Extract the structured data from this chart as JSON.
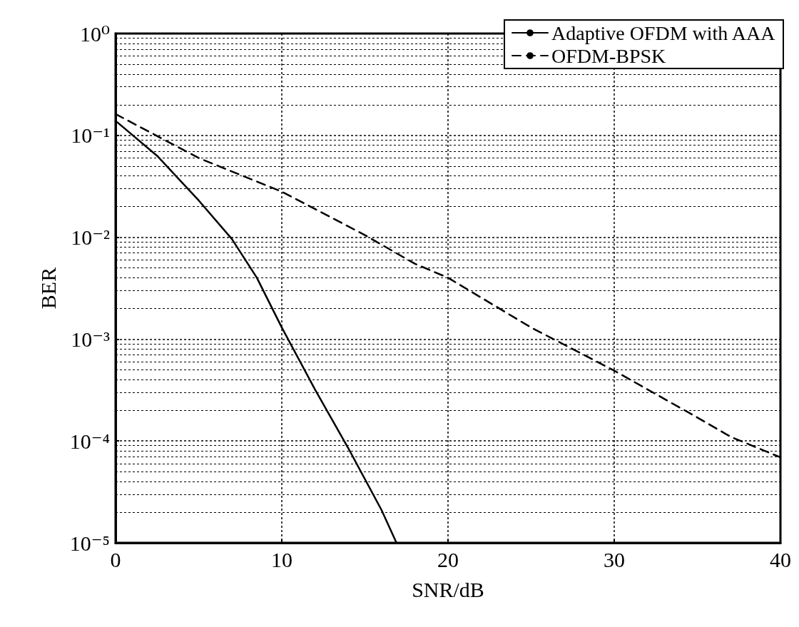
{
  "chart_data": {
    "type": "line",
    "xlabel": "SNR/dB",
    "ylabel": "BER",
    "xlim": [
      0,
      40
    ],
    "xticks": [
      0,
      10,
      20,
      30,
      40
    ],
    "ylim": [
      1e-05,
      1
    ],
    "yticks": [
      {
        "value": 1,
        "label": "10⁰"
      },
      {
        "value": 0.1,
        "label": "10⁻¹"
      },
      {
        "value": 0.01,
        "label": "10⁻²"
      },
      {
        "value": 0.001,
        "label": "10⁻³"
      },
      {
        "value": 0.0001,
        "label": "10⁻⁴"
      },
      {
        "value": 1e-05,
        "label": "10⁻⁵"
      }
    ],
    "log": "y",
    "grid": true,
    "legend": "top right",
    "marker": "none",
    "series": [
      {
        "name": "Adaptive OFDM with AAA",
        "color": "#000000",
        "line_style": "solid",
        "x": [
          0,
          2.5,
          5,
          7,
          8.5,
          10,
          12,
          14,
          16,
          16.9
        ],
        "values": [
          0.139,
          0.063,
          0.023,
          0.0096,
          0.004,
          0.0013,
          0.00032,
          8.5e-05,
          2.1e-05,
          1e-05
        ]
      },
      {
        "name": "OFDM-BPSK",
        "color": "#000000",
        "line_style": "dashed",
        "x": [
          0,
          5,
          10,
          15,
          18,
          20,
          25,
          30,
          35,
          37,
          40
        ],
        "values": [
          0.162,
          0.06,
          0.028,
          0.0105,
          0.0055,
          0.004,
          0.0013,
          0.00049,
          0.00017,
          0.00011,
          6.9e-05
        ]
      }
    ]
  }
}
